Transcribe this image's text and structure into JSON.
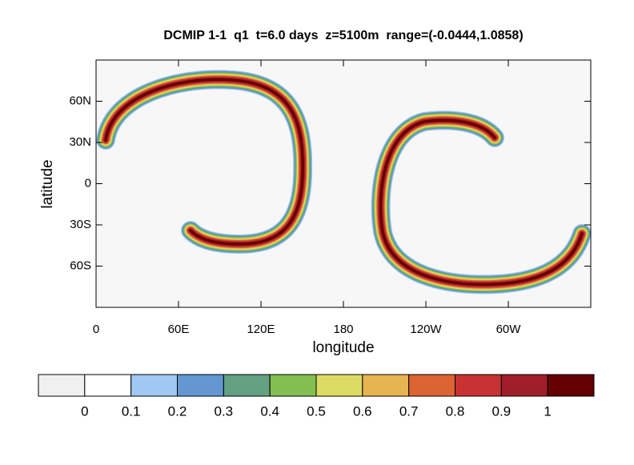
{
  "chart_data": {
    "type": "contour",
    "title": "DCMIP 1-1  q1  t=6.0 days  z=5100m  range=(-0.0444,1.0858)",
    "xlabel": "longitude",
    "ylabel": "latitude",
    "xlim": [
      0,
      360
    ],
    "ylim": [
      -90,
      90
    ],
    "xticks": [
      0,
      {
        "value": 60,
        "label": "60E"
      },
      {
        "value": 120,
        "label": "120E"
      },
      180,
      {
        "value": 240,
        "label": "120W"
      },
      {
        "value": 300,
        "label": "60W"
      }
    ],
    "yticks": [
      {
        "value": -60,
        "label": "60S"
      },
      {
        "value": -30,
        "label": "30S"
      },
      0,
      {
        "value": 30,
        "label": "30N"
      },
      {
        "value": 60,
        "label": "60N"
      }
    ],
    "levels": [
      0,
      0.1,
      0.2,
      0.3,
      0.4,
      0.5,
      0.6,
      0.7,
      0.8,
      0.9,
      1
    ],
    "colors": [
      "#f0f0f0",
      "#ffffff",
      "#a0c8f0",
      "#6496d2",
      "#64a082",
      "#82be50",
      "#dcdc64",
      "#e6b450",
      "#dc6432",
      "#c83232",
      "#a01e28",
      "#640000"
    ]
  }
}
